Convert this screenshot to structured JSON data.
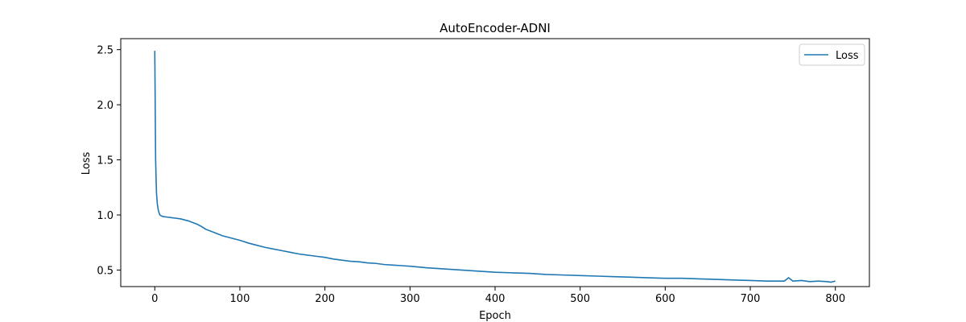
{
  "chart_data": {
    "type": "line",
    "title": "AutoEncoder-ADNI",
    "xlabel": "Epoch",
    "ylabel": "Loss",
    "xlim": [
      -40,
      840
    ],
    "ylim": [
      0.35,
      2.6
    ],
    "x_ticks": [
      0,
      100,
      200,
      300,
      400,
      500,
      600,
      700,
      800
    ],
    "y_ticks": [
      0.5,
      1.0,
      1.5,
      2.0,
      2.5
    ],
    "x_tick_labels": [
      "0",
      "100",
      "200",
      "300",
      "400",
      "500",
      "600",
      "700",
      "800"
    ],
    "y_tick_labels": [
      "0.5",
      "1.0",
      "1.5",
      "2.0",
      "2.5"
    ],
    "grid": false,
    "legend_position": "top-right",
    "series": [
      {
        "name": "Loss",
        "color": "#1f77b4",
        "x": [
          0,
          1,
          2,
          3,
          4,
          5,
          6,
          8,
          10,
          15,
          20,
          25,
          30,
          35,
          40,
          45,
          50,
          55,
          60,
          70,
          80,
          90,
          100,
          110,
          120,
          130,
          140,
          150,
          160,
          170,
          180,
          190,
          200,
          210,
          220,
          230,
          240,
          250,
          260,
          270,
          280,
          290,
          300,
          320,
          340,
          360,
          380,
          400,
          420,
          440,
          460,
          480,
          500,
          520,
          540,
          560,
          580,
          600,
          620,
          640,
          660,
          680,
          700,
          720,
          740,
          745,
          750,
          760,
          770,
          780,
          790,
          795,
          800
        ],
        "y": [
          2.49,
          1.5,
          1.2,
          1.1,
          1.05,
          1.02,
          1.0,
          0.99,
          0.985,
          0.98,
          0.975,
          0.97,
          0.965,
          0.955,
          0.945,
          0.93,
          0.915,
          0.895,
          0.87,
          0.84,
          0.81,
          0.79,
          0.77,
          0.745,
          0.725,
          0.705,
          0.69,
          0.675,
          0.66,
          0.645,
          0.635,
          0.625,
          0.615,
          0.6,
          0.59,
          0.58,
          0.575,
          0.565,
          0.56,
          0.55,
          0.545,
          0.54,
          0.535,
          0.52,
          0.51,
          0.5,
          0.49,
          0.48,
          0.475,
          0.47,
          0.46,
          0.455,
          0.45,
          0.445,
          0.44,
          0.435,
          0.43,
          0.425,
          0.425,
          0.42,
          0.415,
          0.41,
          0.405,
          0.4,
          0.4,
          0.43,
          0.4,
          0.405,
          0.395,
          0.4,
          0.395,
          0.39,
          0.4
        ]
      }
    ]
  }
}
